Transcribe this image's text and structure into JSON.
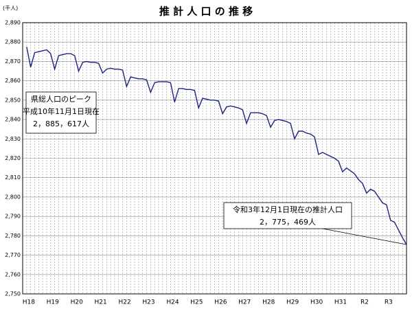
{
  "chart_data": {
    "type": "line",
    "title": "推 計 人 口 の 推 移",
    "y_unit": "(千人)",
    "categories": [
      "H18",
      null,
      null,
      null,
      null,
      null,
      "H19",
      null,
      null,
      null,
      null,
      null,
      "H20",
      null,
      null,
      null,
      null,
      null,
      "H21",
      null,
      null,
      null,
      null,
      null,
      "H22",
      null,
      null,
      null,
      null,
      null,
      "H23",
      null,
      null,
      null,
      null,
      null,
      "H24",
      null,
      null,
      null,
      null,
      null,
      "H25",
      null,
      null,
      null,
      null,
      null,
      "H26",
      null,
      null,
      null,
      null,
      null,
      "H27",
      null,
      null,
      null,
      null,
      null,
      "H28",
      null,
      null,
      null,
      null,
      null,
      "H29",
      null,
      null,
      null,
      null,
      null,
      "H30",
      null,
      null,
      null,
      null,
      null,
      "H31",
      null,
      null,
      null,
      null,
      null,
      "R2",
      null,
      null,
      null,
      null,
      null,
      "R3",
      null,
      null,
      null,
      null,
      null
    ],
    "series": [
      {
        "color": "#1a237e",
        "values": [
          2877.5,
          2867,
          2874.5,
          2875,
          2875.5,
          2876,
          2874,
          2866,
          2873,
          2873.5,
          2874,
          2874,
          2873,
          2865,
          2869.5,
          2870,
          2869.5,
          2869.5,
          2869,
          2864,
          2866,
          2866.5,
          2866,
          2866,
          2865.5,
          2857,
          2862,
          2861.5,
          2861,
          2861,
          2860.5,
          2854,
          2859,
          2859.5,
          2859.5,
          2859.5,
          2859,
          2849,
          2856,
          2856,
          2855.5,
          2855.5,
          2855,
          2846,
          2851,
          2850.5,
          2850,
          2850,
          2849.5,
          2843,
          2846.5,
          2847,
          2846.5,
          2846,
          2845,
          2838,
          2843.5,
          2843.5,
          2843.5,
          2843,
          2842,
          2836,
          2839.5,
          2840,
          2839.5,
          2839,
          2838,
          2830,
          2834,
          2834,
          2833,
          2832.5,
          2831,
          2822,
          2823,
          2822,
          2821,
          2820,
          2818.5,
          2813,
          2815,
          2813.5,
          2812,
          2809,
          2807,
          2802,
          2804,
          2803,
          2800,
          2797,
          2796,
          2788,
          2787,
          2783,
          2779,
          2775.469
        ]
      }
    ],
    "ylim": [
      2750,
      2890
    ],
    "yticks": [
      {
        "value": 2750,
        "label": "2,750"
      },
      {
        "value": 2760,
        "label": "2,760"
      },
      {
        "value": 2770,
        "label": "2,770"
      },
      {
        "value": 2780,
        "label": "2,780"
      },
      {
        "value": 2790,
        "label": "2,790"
      },
      {
        "value": 2800,
        "label": "2,800"
      },
      {
        "value": 2810,
        "label": "2,810"
      },
      {
        "value": 2820,
        "label": "2,820"
      },
      {
        "value": 2830,
        "label": "2,830"
      },
      {
        "value": 2840,
        "label": "2,840"
      },
      {
        "value": 2850,
        "label": "2,850"
      },
      {
        "value": 2860,
        "label": "2,860"
      },
      {
        "value": 2870,
        "label": "2,870"
      },
      {
        "value": 2880,
        "label": "2,880"
      },
      {
        "value": 2890,
        "label": "2,890"
      }
    ],
    "grid": true,
    "annotations": [
      {
        "lines": [
          "県総人口のピーク",
          "平成10年11月1日現在",
          "2，885，617人"
        ]
      },
      {
        "lines": [
          "令和3年12月1日現在の推計人口",
          "2，775，469人"
        ]
      }
    ]
  }
}
